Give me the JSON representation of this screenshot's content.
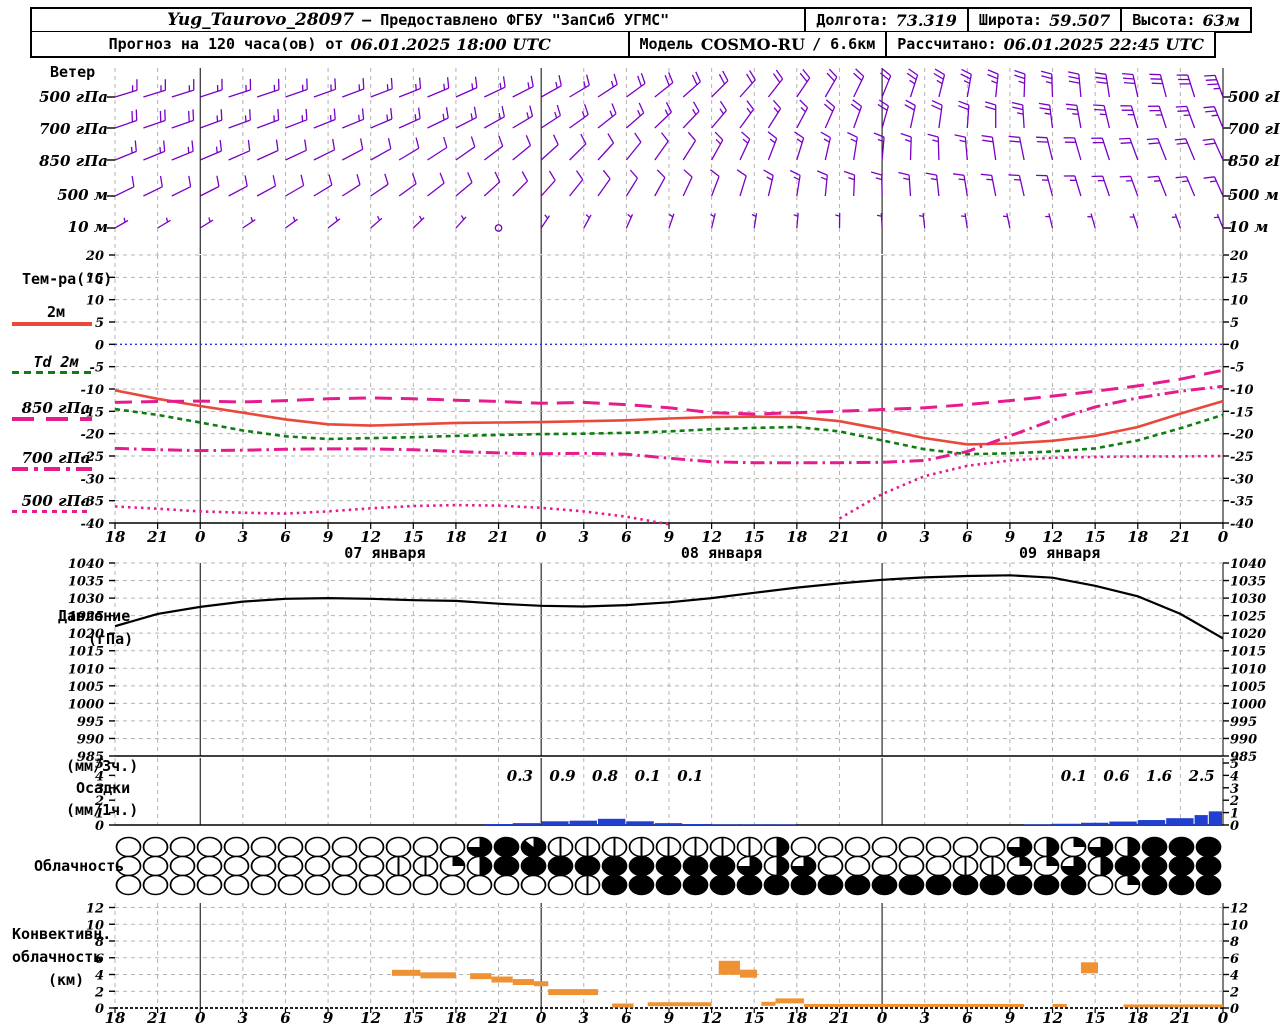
{
  "header": {
    "station": "Yug_Taurovo_28097",
    "provider": "– Предоставлено ФГБУ \"ЗапСиб УГМС\"",
    "lon_label": "Долгота:",
    "lon": "73.319",
    "lat_label": "Широта:",
    "lat": "59.507",
    "alt_label": "Высота:",
    "alt": "63м",
    "forecast_label": "Прогноз на 120 часа(ов) от",
    "forecast_start": "06.01.2025 18:00 UTC",
    "model_label": "Модель",
    "model": "COSMO-RU",
    "model_res": "/ 6.6км",
    "calc_label": "Рассчитано:",
    "calc_time": "06.01.2025 22:45 UTC"
  },
  "panels": {
    "wind": {
      "title": "Ветер",
      "levels": [
        "500 гПа",
        "700 гПа",
        "850 гПа",
        "500 м",
        "10 м"
      ]
    },
    "temp": {
      "title": "Тем-ра(°C)",
      "legend": [
        "2м",
        "Td 2м",
        "850 гПа",
        "700 гПа",
        "500 гПа"
      ]
    },
    "pressure": {
      "title1": "Давление",
      "title2": "(гПа)"
    },
    "precip": {
      "l1": "(мм/3ч.)",
      "l2": "Осадки",
      "l3": "(мм/1ч.)"
    },
    "clouds": {
      "title": "Облачность"
    },
    "conv": {
      "l1": "Конвективн.",
      "l2": "облачность",
      "l3": "(км)"
    }
  },
  "axis": {
    "hours": [
      "18",
      "21",
      "0",
      "3",
      "6",
      "9",
      "12",
      "15",
      "18",
      "21",
      "0",
      "3",
      "6",
      "9",
      "12",
      "15",
      "18",
      "21",
      "0",
      "3",
      "6",
      "9",
      "12",
      "15",
      "18",
      "21",
      "0"
    ],
    "hours_t": [
      0,
      3,
      6,
      9,
      12,
      15,
      18,
      21,
      24,
      27,
      30,
      33,
      36,
      39,
      42,
      45,
      48,
      51,
      54,
      57,
      60,
      63,
      66,
      69,
      72,
      75,
      78
    ],
    "midnights_t": [
      6,
      30,
      54,
      78
    ],
    "dates": [
      {
        "label": "07 января",
        "t": 19
      },
      {
        "label": "08 января",
        "t": 42.7
      },
      {
        "label": "09 января",
        "t": 66.5
      }
    ]
  },
  "colors": {
    "barb": "#7a00c8",
    "t2m": "#e8493a",
    "td": "#0f7d0f",
    "pink": "#e61b8e",
    "zero_line": "#2a2af0",
    "pressure": "#000000",
    "precip_bar": "#2240d0",
    "conv_bar": "#ef9234",
    "grid": "#b3b3b3",
    "axis": "#000000"
  },
  "chart_data": [
    {
      "id": "temp",
      "type": "line",
      "title": "Тем-ра(°C)",
      "ylabel": "°C",
      "ylim": [
        -40,
        20
      ],
      "yticks": [
        20,
        15,
        10,
        5,
        0,
        -5,
        -10,
        -15,
        -20,
        -25,
        -30,
        -35,
        -40
      ],
      "x_hours": [
        0,
        3,
        6,
        9,
        12,
        15,
        18,
        21,
        24,
        27,
        30,
        33,
        36,
        39,
        42,
        45,
        48,
        51,
        54,
        57,
        60,
        63,
        66,
        69,
        72,
        75,
        78
      ],
      "series": [
        {
          "name": "2м",
          "style": "solid",
          "color": "#e8493a",
          "values": [
            -10.3,
            -12.2,
            -13.8,
            -15.3,
            -16.8,
            -17.9,
            -18.2,
            -17.9,
            -17.6,
            -17.5,
            -17.4,
            -17.2,
            -17.0,
            -16.6,
            -16.3,
            -16.2,
            -16.3,
            -17.2,
            -19.0,
            -21.0,
            -22.4,
            -22.2,
            -21.6,
            -20.5,
            -18.5,
            -15.5,
            -12.7
          ]
        },
        {
          "name": "Td 2м",
          "style": "dashed",
          "color": "#0f7d0f",
          "values": [
            -14.5,
            -15.8,
            -17.5,
            -19.3,
            -20.6,
            -21.2,
            -21.0,
            -20.8,
            -20.5,
            -20.3,
            -20.1,
            -20.0,
            -19.8,
            -19.5,
            -19.0,
            -18.7,
            -18.5,
            -19.5,
            -21.5,
            -23.5,
            -24.6,
            -24.4,
            -24.0,
            -23.3,
            -21.5,
            -18.8,
            -15.8
          ]
        },
        {
          "name": "850 гПа",
          "style": "longdash",
          "color": "#e61b8e",
          "values": [
            -13.0,
            -12.8,
            -12.7,
            -12.9,
            -12.6,
            -12.2,
            -12.0,
            -12.2,
            -12.5,
            -12.8,
            -13.2,
            -13.0,
            -13.5,
            -14.2,
            -15.3,
            -15.6,
            -15.3,
            -15.0,
            -14.6,
            -14.2,
            -13.5,
            -12.6,
            -11.6,
            -10.5,
            -9.3,
            -7.8,
            -5.8
          ]
        },
        {
          "name": "700 гПа",
          "style": "dashdot",
          "color": "#e61b8e",
          "values": [
            -23.3,
            -23.6,
            -23.8,
            -23.7,
            -23.5,
            -23.4,
            -23.4,
            -23.6,
            -24.0,
            -24.3,
            -24.5,
            -24.4,
            -24.6,
            -25.5,
            -26.3,
            -26.5,
            -26.5,
            -26.5,
            -26.4,
            -26.0,
            -24.0,
            -20.5,
            -17.0,
            -14.0,
            -12.0,
            -10.5,
            -9.4
          ]
        },
        {
          "name": "500 гПа",
          "style": "dotted",
          "color": "#e61b8e",
          "values": [
            -36.3,
            -36.8,
            -37.4,
            -37.7,
            -37.9,
            -37.4,
            -36.7,
            -36.2,
            -36.0,
            -36.1,
            -36.6,
            -37.4,
            -38.6,
            -40.3,
            null,
            null,
            null,
            -39.0,
            -33.5,
            -29.5,
            -27.2,
            -26.0,
            -25.4,
            -25.2,
            -25.1,
            -25.1,
            -25.0
          ]
        }
      ]
    },
    {
      "id": "pressure",
      "type": "line",
      "title": "Давление (гПа)",
      "ylim": [
        985,
        1040
      ],
      "yticks": [
        1040,
        1035,
        1030,
        1025,
        1020,
        1015,
        1010,
        1005,
        1000,
        995,
        990,
        985
      ],
      "x_hours": [
        0,
        3,
        6,
        9,
        12,
        15,
        18,
        21,
        24,
        27,
        30,
        33,
        36,
        39,
        42,
        45,
        48,
        51,
        54,
        57,
        60,
        63,
        66,
        69,
        72,
        75,
        78
      ],
      "values": [
        1022.0,
        1025.5,
        1027.5,
        1029.0,
        1029.8,
        1030.0,
        1029.8,
        1029.4,
        1029.2,
        1028.4,
        1027.8,
        1027.6,
        1028.0,
        1028.8,
        1030.0,
        1031.5,
        1033.0,
        1034.2,
        1035.2,
        1035.9,
        1036.3,
        1036.5,
        1035.8,
        1033.5,
        1030.5,
        1025.5,
        1018.5
      ]
    },
    {
      "id": "precip",
      "type": "bar",
      "title": "Осадки",
      "ylabel": "мм/1ч",
      "ylim": [
        0,
        5
      ],
      "yticks": [
        5,
        4,
        3,
        2,
        1,
        0
      ],
      "bars_1h": [
        {
          "t": 26,
          "h": 0.08
        },
        {
          "t": 28,
          "h": 0.15
        },
        {
          "t": 30,
          "h": 0.3
        },
        {
          "t": 32,
          "h": 0.35
        },
        {
          "t": 34,
          "h": 0.5
        },
        {
          "t": 36,
          "h": 0.3
        },
        {
          "t": 38,
          "h": 0.15
        },
        {
          "t": 40,
          "h": 0.08
        },
        {
          "t": 42,
          "h": 0.05
        },
        {
          "t": 44,
          "h": 0.05
        },
        {
          "t": 46,
          "h": 0.05
        },
        {
          "t": 64,
          "h": 0.05
        },
        {
          "t": 66,
          "h": 0.1
        },
        {
          "t": 68,
          "h": 0.18
        },
        {
          "t": 70,
          "h": 0.28
        },
        {
          "t": 72,
          "h": 0.4
        },
        {
          "t": 74,
          "h": 0.55
        },
        {
          "t": 76,
          "h": 0.8,
          "w": 1
        },
        {
          "t": 77,
          "h": 1.1,
          "w": 1
        }
      ],
      "amounts_3h": [
        {
          "t": 28.5,
          "v": "0.3"
        },
        {
          "t": 31.5,
          "v": "0.9"
        },
        {
          "t": 34.5,
          "v": "0.8"
        },
        {
          "t": 37.5,
          "v": "0.1"
        },
        {
          "t": 40.5,
          "v": "0.1"
        },
        {
          "t": 67.5,
          "v": "0.1"
        },
        {
          "t": 70.5,
          "v": "0.6"
        },
        {
          "t": 73.5,
          "v": "1.6"
        },
        {
          "t": 76.5,
          "v": "2.5"
        }
      ]
    },
    {
      "id": "clouds",
      "type": "heatmap",
      "title": "Облачность",
      "unit": "oktas",
      "rows": [
        {
          "oktas": [
            0,
            0,
            0,
            0,
            0,
            0,
            0,
            0,
            0,
            0,
            0,
            0,
            0,
            6,
            8,
            7,
            1,
            1,
            1,
            1,
            1,
            1,
            1,
            1,
            4,
            0,
            0,
            0,
            0,
            0,
            0,
            0,
            0,
            6,
            4,
            2,
            6,
            4,
            8,
            8,
            8
          ]
        },
        {
          "oktas": [
            0,
            0,
            0,
            0,
            0,
            0,
            0,
            0,
            0,
            0,
            1,
            1,
            2,
            4,
            8,
            8,
            8,
            8,
            8,
            8,
            8,
            8,
            8,
            6,
            4,
            6,
            0,
            0,
            0,
            0,
            0,
            1,
            1,
            2,
            2,
            6,
            4,
            8,
            8,
            8,
            8
          ]
        },
        {
          "oktas": [
            0,
            0,
            0,
            0,
            0,
            0,
            0,
            0,
            0,
            0,
            0,
            0,
            0,
            0,
            0,
            0,
            0,
            1,
            8,
            8,
            8,
            8,
            8,
            8,
            8,
            8,
            8,
            8,
            8,
            8,
            8,
            8,
            8,
            8,
            8,
            8,
            0,
            2,
            8,
            8,
            8
          ]
        }
      ]
    },
    {
      "id": "conv",
      "type": "bar",
      "title": "Конвективная облачность (км)",
      "ylim": [
        0,
        12
      ],
      "yticks": [
        12,
        10,
        8,
        6,
        4,
        2,
        0
      ],
      "segments": [
        {
          "t0": 19.5,
          "t1": 21.5,
          "km": 4.2,
          "th": 6
        },
        {
          "t0": 21.5,
          "t1": 24,
          "km": 3.9,
          "th": 6
        },
        {
          "t0": 25,
          "t1": 26.5,
          "km": 3.8,
          "th": 6
        },
        {
          "t0": 26.5,
          "t1": 28,
          "km": 3.4,
          "th": 6
        },
        {
          "t0": 28,
          "t1": 29.5,
          "km": 3.1,
          "th": 6
        },
        {
          "t0": 29.5,
          "t1": 30.5,
          "km": 2.9,
          "th": 5
        },
        {
          "t0": 30.5,
          "t1": 34,
          "km": 1.9,
          "th": 6
        },
        {
          "t0": 35,
          "t1": 36.5,
          "km": 0.3,
          "th": 4
        },
        {
          "t0": 37.5,
          "t1": 42,
          "km": 0.45,
          "th": 4
        },
        {
          "t0": 42.5,
          "t1": 44,
          "km": 4.8,
          "th": 14
        },
        {
          "t0": 44,
          "t1": 45.2,
          "km": 4.1,
          "th": 8
        },
        {
          "t0": 45.5,
          "t1": 46.5,
          "km": 0.5,
          "th": 4
        },
        {
          "t0": 46.5,
          "t1": 48.5,
          "km": 0.85,
          "th": 5
        },
        {
          "t0": 48.5,
          "t1": 64,
          "km": 0.3,
          "th": 3
        },
        {
          "t0": 66,
          "t1": 67,
          "km": 0.3,
          "th": 3
        },
        {
          "t0": 68,
          "t1": 69.2,
          "km": 4.8,
          "th": 11
        },
        {
          "t0": 71,
          "t1": 78,
          "km": 0.25,
          "th": 3
        }
      ]
    },
    {
      "id": "wind",
      "type": "table",
      "title": "Ветер",
      "unit": "узлы",
      "x_hours": [
        0,
        3,
        6,
        9,
        12,
        15,
        18,
        21,
        24,
        27,
        30,
        33,
        36,
        39,
        42,
        45,
        48,
        51,
        54,
        57,
        60,
        63,
        66,
        69,
        72,
        75,
        78
      ],
      "rows": [
        {
          "level": "500 гПа",
          "dir": [
            253,
            253,
            252,
            252,
            251,
            250,
            249,
            248,
            246,
            244,
            241,
            238,
            234,
            230,
            225,
            220,
            214,
            208,
            202,
            196,
            190,
            184,
            178,
            173,
            168,
            164,
            160
          ],
          "speed": [
            15,
            15,
            15,
            15,
            15,
            15,
            15,
            15,
            15,
            15,
            15,
            18,
            20,
            20,
            20,
            20,
            20,
            20,
            22,
            25,
            25,
            25,
            27,
            30,
            30,
            32,
            33
          ]
        },
        {
          "level": "700 гПа",
          "dir": [
            251,
            251,
            250,
            250,
            249,
            248,
            247,
            245,
            243,
            240,
            237,
            233,
            229,
            225,
            220,
            214,
            208,
            202,
            196,
            190,
            184,
            178,
            173,
            168,
            164,
            161,
            158
          ],
          "speed": [
            20,
            20,
            18,
            18,
            15,
            15,
            15,
            15,
            15,
            15,
            15,
            15,
            15,
            15,
            15,
            17,
            18,
            20,
            20,
            20,
            22,
            23,
            25,
            25,
            25,
            25,
            25
          ]
        },
        {
          "level": "850 гПа",
          "dir": [
            248,
            248,
            247,
            246,
            245,
            243,
            241,
            238,
            235,
            232,
            228,
            224,
            219,
            214,
            209,
            203,
            197,
            191,
            185,
            180,
            175,
            170,
            166,
            163,
            160,
            158,
            156
          ],
          "speed": [
            15,
            15,
            13,
            12,
            10,
            10,
            10,
            10,
            10,
            10,
            10,
            10,
            10,
            12,
            13,
            15,
            15,
            15,
            15,
            17,
            18,
            20,
            20,
            20,
            20,
            20,
            20
          ]
        },
        {
          "level": "500 м",
          "dir": [
            244,
            244,
            243,
            242,
            240,
            238,
            236,
            233,
            230,
            226,
            222,
            217,
            212,
            207,
            201,
            195,
            189,
            184,
            179,
            175,
            171,
            168,
            165,
            162,
            160,
            158,
            156
          ],
          "speed": [
            10,
            10,
            10,
            10,
            10,
            10,
            10,
            10,
            10,
            10,
            10,
            10,
            10,
            10,
            12,
            13,
            13,
            15,
            15,
            15,
            15,
            15,
            15,
            15,
            15,
            15,
            15
          ]
        },
        {
          "level": "10 м",
          "dir": [
            240,
            239,
            238,
            236,
            234,
            232,
            229,
            226,
            222,
            218,
            214,
            209,
            204,
            199,
            194,
            189,
            185,
            181,
            177,
            174,
            171,
            168,
            166,
            164,
            162,
            160,
            158
          ],
          "speed": [
            5,
            5,
            5,
            5,
            5,
            5,
            7,
            7,
            5,
            0,
            5,
            5,
            5,
            5,
            7,
            7,
            7,
            7,
            8,
            8,
            8,
            8,
            8,
            8,
            8,
            8,
            8
          ]
        }
      ]
    }
  ]
}
